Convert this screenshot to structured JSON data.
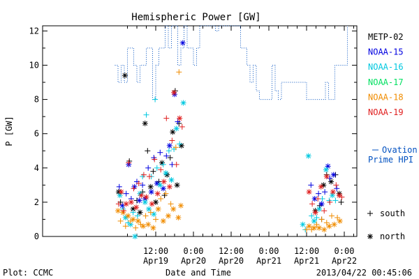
{
  "chart_data": {
    "type": "scatter",
    "title": "Hemispheric Power [GW]",
    "xlabel": "Date and Time",
    "ylabel": "P [GW]",
    "ylim": [
      0,
      12.3
    ],
    "yticks": [
      0,
      2,
      4,
      6,
      8,
      10,
      12
    ],
    "x_unit": "hours since 2013-04-18 00:00 UT",
    "xlim": [
      0,
      100
    ],
    "xticks": [
      {
        "x": 36,
        "line1": "12:00",
        "line2": "Apr19"
      },
      {
        "x": 48,
        "line1": "0:00",
        "line2": "Apr20"
      },
      {
        "x": 60,
        "line1": "12:00",
        "line2": "Apr20"
      },
      {
        "x": 72,
        "line1": "0:00",
        "line2": "Apr21"
      },
      {
        "x": 84,
        "line1": "12:00",
        "line2": "Apr21"
      },
      {
        "x": 96,
        "line1": "0:00",
        "line2": "Apr22"
      }
    ],
    "legend_placement": "right",
    "series": [
      {
        "name": "METP-02",
        "color": "#000000",
        "points": [
          [
            24.2,
            2.6
          ],
          [
            24.8,
            2.0
          ],
          [
            26.2,
            9.4
          ],
          [
            27.6,
            4.4
          ],
          [
            28.8,
            1.6
          ],
          [
            30.0,
            2.1
          ],
          [
            31.0,
            1.4
          ],
          [
            31.8,
            2.6
          ],
          [
            32.6,
            6.6
          ],
          [
            33.4,
            5.0
          ],
          [
            34.4,
            2.9
          ],
          [
            35.2,
            3.8
          ],
          [
            36.0,
            2.0
          ],
          [
            37.0,
            3.2
          ],
          [
            38.0,
            4.3
          ],
          [
            38.8,
            2.4
          ],
          [
            39.6,
            3.6
          ],
          [
            40.6,
            4.6
          ],
          [
            41.4,
            6.1
          ],
          [
            42.2,
            8.5
          ],
          [
            42.8,
            3.0
          ],
          [
            43.4,
            6.6
          ],
          [
            44.2,
            5.3
          ],
          [
            88.2,
            1.8
          ],
          [
            89.4,
            3.0
          ],
          [
            90.4,
            3.6
          ],
          [
            91.8,
            3.2
          ],
          [
            93.2,
            3.6
          ],
          [
            94.4,
            2.5
          ],
          [
            95.0,
            2.0
          ],
          [
            86.8,
            1.5
          ],
          [
            88.8,
            1.0
          ]
        ]
      },
      {
        "name": "NOAA-15",
        "color": "#0000e0",
        "points": [
          [
            24.4,
            2.9
          ],
          [
            25.4,
            1.8
          ],
          [
            26.6,
            2.5
          ],
          [
            27.4,
            4.2
          ],
          [
            28.2,
            2.2
          ],
          [
            29.2,
            2.9
          ],
          [
            30.0,
            3.2
          ],
          [
            30.8,
            2.1
          ],
          [
            31.8,
            3.0
          ],
          [
            32.6,
            2.2
          ],
          [
            33.6,
            4.0
          ],
          [
            34.6,
            2.6
          ],
          [
            35.4,
            4.6
          ],
          [
            36.4,
            3.1
          ],
          [
            37.4,
            4.9
          ],
          [
            38.4,
            2.8
          ],
          [
            39.4,
            4.7
          ],
          [
            40.4,
            5.3
          ],
          [
            41.2,
            4.2
          ],
          [
            42.0,
            8.3
          ],
          [
            43.0,
            6.7
          ],
          [
            44.6,
            11.3
          ],
          [
            85.4,
            3.0
          ],
          [
            86.6,
            2.2
          ],
          [
            87.8,
            2.5
          ],
          [
            88.8,
            1.9
          ],
          [
            89.8,
            2.6
          ],
          [
            90.8,
            4.1
          ],
          [
            91.4,
            3.4
          ],
          [
            92.6,
            3.6
          ],
          [
            93.6,
            2.8
          ]
        ]
      },
      {
        "name": "NOAA-16",
        "color": "#00c8e0",
        "points": [
          [
            24.6,
            2.4
          ],
          [
            25.6,
            1.6
          ],
          [
            26.4,
            1.1
          ],
          [
            27.2,
            0.8
          ],
          [
            28.0,
            0.7
          ],
          [
            28.8,
            1.4
          ],
          [
            29.4,
            0.0
          ],
          [
            30.2,
            1.2
          ],
          [
            31.0,
            2.5
          ],
          [
            31.8,
            3.5
          ],
          [
            32.6,
            2.0
          ],
          [
            33.0,
            7.1
          ],
          [
            33.8,
            1.6
          ],
          [
            34.6,
            3.5
          ],
          [
            35.4,
            1.3
          ],
          [
            36.4,
            4.0
          ],
          [
            37.4,
            3.0
          ],
          [
            38.4,
            4.2
          ],
          [
            39.2,
            3.7
          ],
          [
            40.2,
            5.0
          ],
          [
            41.0,
            3.3
          ],
          [
            41.8,
            5.1
          ],
          [
            42.6,
            6.3
          ],
          [
            43.6,
            5.4
          ],
          [
            44.8,
            7.8
          ],
          [
            35.8,
            8.0
          ],
          [
            82.8,
            0.7
          ],
          [
            83.6,
            0.4
          ],
          [
            84.6,
            4.7
          ],
          [
            85.6,
            1.2
          ],
          [
            86.4,
            0.9
          ],
          [
            87.2,
            1.1
          ],
          [
            88.0,
            1.6
          ],
          [
            89.0,
            2.2
          ],
          [
            90.2,
            3.9
          ],
          [
            91.2,
            2.1
          ],
          [
            92.2,
            2.4
          ],
          [
            93.2,
            2.1
          ]
        ]
      },
      {
        "name": "NOAA-17",
        "color": "#00e060",
        "points": []
      },
      {
        "name": "NOAA-18",
        "color": "#f08c00",
        "points": [
          [
            24.0,
            1.5
          ],
          [
            24.8,
            0.9
          ],
          [
            25.6,
            1.4
          ],
          [
            26.4,
            0.6
          ],
          [
            27.2,
            1.2
          ],
          [
            28.0,
            0.9
          ],
          [
            28.8,
            1.0
          ],
          [
            29.6,
            0.5
          ],
          [
            30.4,
            0.9
          ],
          [
            31.2,
            0.7
          ],
          [
            32.0,
            0.6
          ],
          [
            32.8,
            1.2
          ],
          [
            33.6,
            0.7
          ],
          [
            34.4,
            1.4
          ],
          [
            35.2,
            0.5
          ],
          [
            36.0,
            1.0
          ],
          [
            36.8,
            1.6
          ],
          [
            37.6,
            2.2
          ],
          [
            38.4,
            0.9
          ],
          [
            39.2,
            2.5
          ],
          [
            40.0,
            1.2
          ],
          [
            40.8,
            1.9
          ],
          [
            41.6,
            1.6
          ],
          [
            42.4,
            5.2
          ],
          [
            43.2,
            1.1
          ],
          [
            43.4,
            9.6
          ],
          [
            44.0,
            1.8
          ],
          [
            84.0,
            0.4
          ],
          [
            84.8,
            0.6
          ],
          [
            85.6,
            0.4
          ],
          [
            86.4,
            0.5
          ],
          [
            87.2,
            0.7
          ],
          [
            88.0,
            0.5
          ],
          [
            88.8,
            1.0
          ],
          [
            89.6,
            0.4
          ],
          [
            90.4,
            0.8
          ],
          [
            91.2,
            0.6
          ],
          [
            92.0,
            1.2
          ],
          [
            92.8,
            0.7
          ],
          [
            93.8,
            1.1
          ],
          [
            94.6,
            0.9
          ]
        ]
      },
      {
        "name": "NOAA-19",
        "color": "#e01e1e",
        "points": [
          [
            24.2,
            1.9
          ],
          [
            25.0,
            2.6
          ],
          [
            25.8,
            1.5
          ],
          [
            26.6,
            1.9
          ],
          [
            27.4,
            4.3
          ],
          [
            28.2,
            2.0
          ],
          [
            29.0,
            2.8
          ],
          [
            29.8,
            1.7
          ],
          [
            30.6,
            3.1
          ],
          [
            31.4,
            2.4
          ],
          [
            32.2,
            3.6
          ],
          [
            33.0,
            2.3
          ],
          [
            34.0,
            3.5
          ],
          [
            34.8,
            1.9
          ],
          [
            35.6,
            4.5
          ],
          [
            36.6,
            2.5
          ],
          [
            37.6,
            3.9
          ],
          [
            38.6,
            3.2
          ],
          [
            39.4,
            6.9
          ],
          [
            40.4,
            2.9
          ],
          [
            41.2,
            5.6
          ],
          [
            41.8,
            8.4
          ],
          [
            42.6,
            4.2
          ],
          [
            43.6,
            6.9
          ],
          [
            44.4,
            6.4
          ],
          [
            84.8,
            2.6
          ],
          [
            85.8,
            1.9
          ],
          [
            86.8,
            1.4
          ],
          [
            87.6,
            2.2
          ],
          [
            88.6,
            2.9
          ],
          [
            89.6,
            1.5
          ],
          [
            90.4,
            3.5
          ],
          [
            91.4,
            2.0
          ],
          [
            92.4,
            2.6
          ],
          [
            93.4,
            3.0
          ],
          [
            94.4,
            2.4
          ],
          [
            95.2,
            2.3
          ]
        ]
      }
    ],
    "ovation_line": {
      "name": "Ovation Prime HPI",
      "color": "#0050c0",
      "points": [
        [
          23.0,
          10.0
        ],
        [
          24.0,
          10.0
        ],
        [
          24.0,
          9.0
        ],
        [
          25.0,
          9.0
        ],
        [
          25.0,
          10.0
        ],
        [
          26.0,
          10.0
        ],
        [
          26.0,
          9.0
        ],
        [
          27.0,
          9.0
        ],
        [
          27.0,
          11.0
        ],
        [
          29.0,
          11.0
        ],
        [
          29.0,
          10.0
        ],
        [
          30.0,
          10.0
        ],
        [
          30.0,
          9.0
        ],
        [
          31.0,
          9.0
        ],
        [
          31.0,
          10.0
        ],
        [
          33.0,
          10.0
        ],
        [
          33.0,
          11.0
        ],
        [
          35.0,
          11.0
        ],
        [
          35.0,
          8.0
        ],
        [
          36.0,
          8.0
        ],
        [
          36.0,
          10.0
        ],
        [
          37.0,
          10.0
        ],
        [
          37.0,
          11.0
        ],
        [
          39.0,
          11.0
        ],
        [
          39.0,
          12.3
        ],
        [
          40.0,
          12.3
        ],
        [
          40.0,
          11.0
        ],
        [
          41.0,
          11.0
        ],
        [
          41.0,
          12.3
        ],
        [
          43.0,
          12.3
        ],
        [
          43.0,
          10.0
        ],
        [
          44.0,
          10.0
        ],
        [
          44.0,
          11.0
        ],
        [
          45.0,
          11.0
        ],
        [
          45.0,
          12.3
        ],
        [
          46.0,
          12.3
        ],
        [
          46.0,
          11.0
        ],
        [
          48.0,
          11.0
        ],
        [
          48.0,
          10.0
        ],
        [
          49.0,
          10.0
        ],
        [
          49.0,
          11.0
        ],
        [
          50.0,
          11.0
        ],
        [
          50.0,
          12.3
        ],
        [
          55.0,
          12.3
        ],
        [
          55.0,
          12.0
        ],
        [
          56.0,
          12.0
        ],
        [
          56.0,
          12.3
        ],
        [
          63.0,
          12.3
        ],
        [
          63.0,
          11.0
        ],
        [
          65.0,
          11.0
        ],
        [
          65.0,
          10.0
        ],
        [
          66.0,
          10.0
        ],
        [
          66.0,
          9.0
        ],
        [
          67.0,
          9.0
        ],
        [
          67.0,
          10.0
        ],
        [
          68.0,
          10.0
        ],
        [
          68.0,
          8.5
        ],
        [
          69.0,
          8.5
        ],
        [
          69.0,
          8.0
        ],
        [
          73.0,
          8.0
        ],
        [
          73.0,
          10.0
        ],
        [
          74.0,
          10.0
        ],
        [
          74.0,
          8.5
        ],
        [
          75.0,
          8.5
        ],
        [
          75.0,
          8.0
        ],
        [
          76.0,
          8.0
        ],
        [
          76.0,
          9.0
        ],
        [
          84.0,
          9.0
        ],
        [
          84.0,
          8.0
        ],
        [
          90.0,
          8.0
        ],
        [
          90.0,
          9.0
        ],
        [
          91.0,
          9.0
        ],
        [
          91.0,
          8.0
        ],
        [
          93.0,
          8.0
        ],
        [
          93.0,
          10.0
        ],
        [
          97.0,
          10.0
        ],
        [
          97.0,
          12.3
        ]
      ]
    }
  },
  "legend_ovation_line1": "Ovation",
  "legend_ovation_line2": "Prime HPI",
  "marker_legend": {
    "south": "south",
    "north": "north"
  },
  "footer": {
    "left": "Plot: CCMC",
    "right": "2013/04/22 00:45:06"
  }
}
